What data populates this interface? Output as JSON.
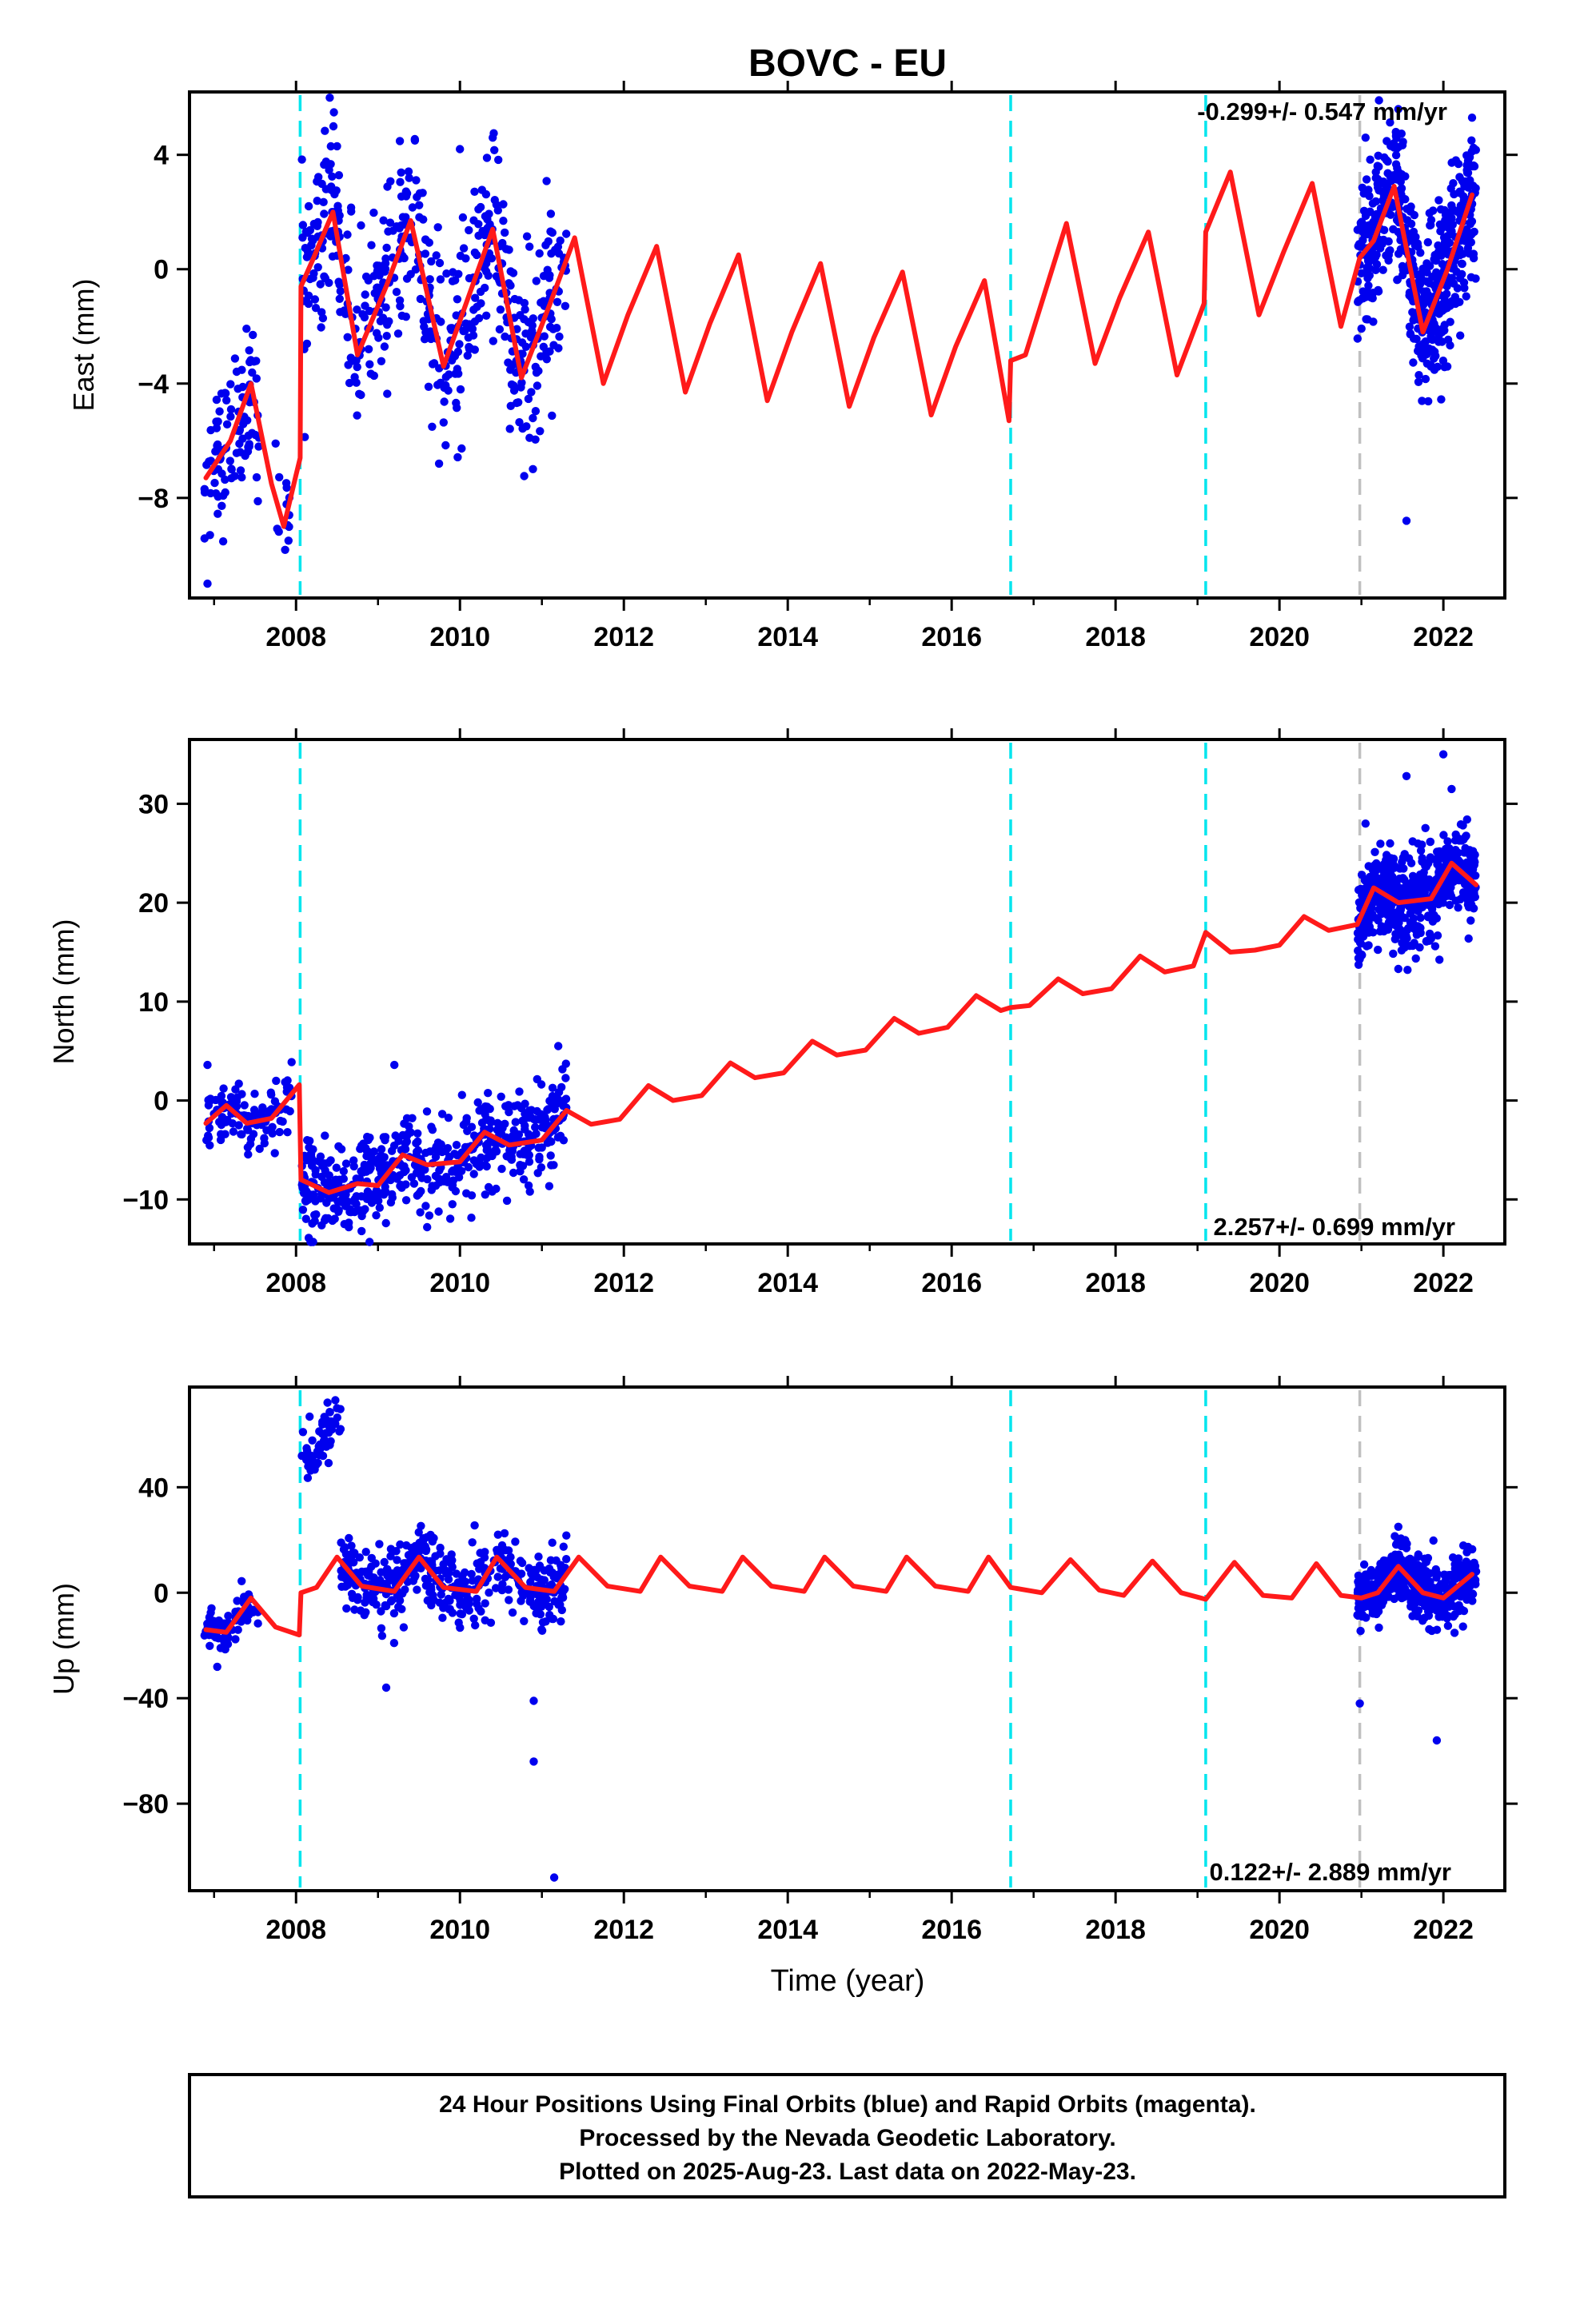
{
  "title": "BOVC - EU",
  "xlabel": "Time (year)",
  "footer": {
    "line1": "24 Hour Positions Using Final Orbits (blue) and Rapid Orbits (magenta).",
    "line2": "Processed by the Nevada Geodetic Laboratory.",
    "line3": "Plotted on 2025-Aug-23. Last data on 2022-May-23."
  },
  "colors": {
    "data_points": "#0000ee",
    "model": "#ff1a1a",
    "equipment_change": "#00e5ee",
    "earthquake_marker": "#c0c0c0",
    "frame": "#000000"
  },
  "chart_data": [
    {
      "type": "scatter",
      "component": "East",
      "ylabel": "East (mm)",
      "rate": "-0.299+/- 0.547 mm/yr",
      "xlim": [
        2006.7,
        2022.75
      ],
      "ylim": [
        -11.5,
        6.2
      ],
      "xticks": [
        2008,
        2010,
        2012,
        2014,
        2016,
        2018,
        2020,
        2022
      ],
      "yticks": [
        -8,
        -4,
        0,
        4
      ],
      "vlines_cyan": [
        2008.05,
        2016.72,
        2019.1
      ],
      "vlines_gray": [
        2020.98
      ],
      "legend": "none",
      "grid": false,
      "model_anchors": [
        [
          2006.9,
          -7.3
        ],
        [
          2007.2,
          -6.0
        ],
        [
          2007.45,
          -4.0
        ],
        [
          2007.7,
          -7.5
        ],
        [
          2007.85,
          -9.0
        ],
        [
          2008.0,
          -7.2
        ],
        [
          2008.05,
          -6.6
        ],
        [
          2008.06,
          -0.6
        ],
        [
          2008.2,
          0.3
        ],
        [
          2008.45,
          2.0
        ],
        [
          2008.75,
          -3.0
        ],
        [
          2009.1,
          -0.6
        ],
        [
          2009.4,
          1.7
        ],
        [
          2009.8,
          -3.4
        ],
        [
          2010.15,
          -0.6
        ],
        [
          2010.4,
          1.4
        ],
        [
          2010.75,
          -3.8
        ],
        [
          2011.1,
          -1.2
        ],
        [
          2011.4,
          1.1
        ],
        [
          2011.75,
          -4.0
        ],
        [
          2012.05,
          -1.6
        ],
        [
          2012.4,
          0.8
        ],
        [
          2012.75,
          -4.3
        ],
        [
          2013.05,
          -1.9
        ],
        [
          2013.4,
          0.5
        ],
        [
          2013.75,
          -4.6
        ],
        [
          2014.05,
          -2.2
        ],
        [
          2014.4,
          0.2
        ],
        [
          2014.75,
          -4.8
        ],
        [
          2015.05,
          -2.4
        ],
        [
          2015.4,
          -0.1
        ],
        [
          2015.75,
          -5.1
        ],
        [
          2016.05,
          -2.7
        ],
        [
          2016.4,
          -0.4
        ],
        [
          2016.7,
          -5.3
        ],
        [
          2016.72,
          -3.2
        ],
        [
          2016.9,
          -3.0
        ],
        [
          2017.4,
          1.6
        ],
        [
          2017.75,
          -3.3
        ],
        [
          2018.05,
          -1.0
        ],
        [
          2018.4,
          1.3
        ],
        [
          2018.75,
          -3.7
        ],
        [
          2019.08,
          -1.2
        ],
        [
          2019.1,
          1.3
        ],
        [
          2019.4,
          3.4
        ],
        [
          2019.75,
          -1.6
        ],
        [
          2020.05,
          0.6
        ],
        [
          2020.4,
          3.0
        ],
        [
          2020.75,
          -2.0
        ],
        [
          2020.98,
          0.4
        ],
        [
          2021.15,
          1.0
        ],
        [
          2021.4,
          2.9
        ],
        [
          2021.75,
          -2.2
        ],
        [
          2022.05,
          0.0
        ],
        [
          2022.35,
          2.6
        ]
      ],
      "data_segments": [
        {
          "x0": 2006.88,
          "x1": 2007.55,
          "n": 95,
          "sigma": 1.3
        },
        {
          "x0": 2007.75,
          "x1": 2007.92,
          "n": 14,
          "sigma": 0.9
        },
        {
          "x0": 2008.07,
          "x1": 2011.3,
          "n": 520,
          "sigma": 1.6
        },
        {
          "x0": 2020.95,
          "x1": 2022.4,
          "n": 560,
          "sigma": 1.4
        }
      ],
      "outliers": [
        [
          2006.92,
          -11.0
        ],
        [
          2006.95,
          -9.3
        ],
        [
          2021.55,
          -8.8
        ],
        [
          2021.45,
          5.6
        ],
        [
          2021.42,
          4.8
        ],
        [
          2021.05,
          4.6
        ],
        [
          2022.35,
          5.3
        ],
        [
          2010.4,
          4.6
        ],
        [
          2009.45,
          4.5
        ],
        [
          2010.0,
          4.2
        ],
        [
          2008.5,
          4.3
        ],
        [
          2010.85,
          -5.9
        ]
      ]
    },
    {
      "type": "scatter",
      "component": "North",
      "ylabel": "North (mm)",
      "rate": "2.257+/- 0.699 mm/yr",
      "xlim": [
        2006.7,
        2022.75
      ],
      "ylim": [
        -14.5,
        36.5
      ],
      "xticks": [
        2008,
        2010,
        2012,
        2014,
        2016,
        2018,
        2020,
        2022
      ],
      "yticks": [
        -10,
        0,
        10,
        20,
        30
      ],
      "vlines_cyan": [
        2008.05,
        2016.72,
        2019.1
      ],
      "vlines_gray": [
        2020.98
      ],
      "legend": "none",
      "grid": false,
      "model_anchors": [
        [
          2006.9,
          -2.3
        ],
        [
          2007.15,
          -0.5
        ],
        [
          2007.4,
          -2.3
        ],
        [
          2007.7,
          -1.8
        ],
        [
          2008.04,
          1.6
        ],
        [
          2008.06,
          -8.0
        ],
        [
          2008.4,
          -9.3
        ],
        [
          2008.75,
          -8.4
        ],
        [
          2009.0,
          -8.6
        ],
        [
          2009.3,
          -5.5
        ],
        [
          2009.6,
          -6.5
        ],
        [
          2010.0,
          -6.2
        ],
        [
          2010.3,
          -3.2
        ],
        [
          2010.6,
          -4.5
        ],
        [
          2011.0,
          -4.0
        ],
        [
          2011.3,
          -1.0
        ],
        [
          2011.6,
          -2.4
        ],
        [
          2011.95,
          -1.9
        ],
        [
          2012.3,
          1.5
        ],
        [
          2012.6,
          0.0
        ],
        [
          2012.95,
          0.5
        ],
        [
          2013.3,
          3.8
        ],
        [
          2013.6,
          2.3
        ],
        [
          2013.95,
          2.8
        ],
        [
          2014.3,
          6.0
        ],
        [
          2014.6,
          4.6
        ],
        [
          2014.95,
          5.1
        ],
        [
          2015.3,
          8.3
        ],
        [
          2015.6,
          6.8
        ],
        [
          2015.95,
          7.4
        ],
        [
          2016.3,
          10.6
        ],
        [
          2016.6,
          9.1
        ],
        [
          2016.72,
          9.4
        ],
        [
          2016.95,
          9.6
        ],
        [
          2017.3,
          12.3
        ],
        [
          2017.6,
          10.8
        ],
        [
          2017.95,
          11.3
        ],
        [
          2018.3,
          14.6
        ],
        [
          2018.6,
          13.0
        ],
        [
          2018.95,
          13.6
        ],
        [
          2019.1,
          17.0
        ],
        [
          2019.4,
          15.0
        ],
        [
          2019.7,
          15.2
        ],
        [
          2020.0,
          15.7
        ],
        [
          2020.3,
          18.6
        ],
        [
          2020.6,
          17.2
        ],
        [
          2020.95,
          17.8
        ],
        [
          2021.15,
          21.5
        ],
        [
          2021.45,
          20.0
        ],
        [
          2021.85,
          20.4
        ],
        [
          2022.1,
          24.0
        ],
        [
          2022.4,
          21.8
        ]
      ],
      "data_segments": [
        {
          "x0": 2006.88,
          "x1": 2007.95,
          "n": 110,
          "sigma": 1.5
        },
        {
          "x0": 2008.07,
          "x1": 2011.3,
          "n": 520,
          "sigma": 2.4
        },
        {
          "x0": 2020.95,
          "x1": 2022.4,
          "n": 560,
          "sigma": 2.3
        }
      ],
      "outliers": [
        [
          2022.0,
          35.0
        ],
        [
          2021.55,
          32.8
        ],
        [
          2022.1,
          31.5
        ],
        [
          2021.05,
          28.0
        ],
        [
          2021.45,
          13.3
        ],
        [
          2009.2,
          3.6
        ],
        [
          2011.2,
          5.5
        ],
        [
          2006.92,
          3.6
        ],
        [
          2008.8,
          -13.2
        ],
        [
          2009.6,
          -12.8
        ]
      ]
    },
    {
      "type": "scatter",
      "component": "Up",
      "ylabel": "Up (mm)",
      "rate": "0.122+/- 2.889 mm/yr",
      "xlim": [
        2006.7,
        2022.75
      ],
      "ylim": [
        -113,
        78
      ],
      "xticks": [
        2008,
        2010,
        2012,
        2014,
        2016,
        2018,
        2020,
        2022
      ],
      "yticks": [
        -80,
        -40,
        0,
        40
      ],
      "vlines_cyan": [
        2008.05,
        2016.72,
        2019.1
      ],
      "vlines_gray": [
        2020.98
      ],
      "legend": "none",
      "grid": false,
      "model_anchors": [
        [
          2006.9,
          -14.0
        ],
        [
          2007.15,
          -15.0
        ],
        [
          2007.45,
          -2.0
        ],
        [
          2007.75,
          -13.0
        ],
        [
          2008.04,
          -16.0
        ],
        [
          2008.06,
          0.0
        ],
        [
          2008.25,
          2.0
        ],
        [
          2008.5,
          13.5
        ],
        [
          2008.8,
          2.5
        ],
        [
          2009.2,
          0.5
        ],
        [
          2009.5,
          13.5
        ],
        [
          2009.8,
          2.0
        ],
        [
          2010.2,
          0.5
        ],
        [
          2010.45,
          13.5
        ],
        [
          2010.8,
          2.0
        ],
        [
          2011.15,
          0.5
        ],
        [
          2011.45,
          13.5
        ],
        [
          2011.8,
          2.5
        ],
        [
          2012.2,
          0.5
        ],
        [
          2012.45,
          13.5
        ],
        [
          2012.8,
          2.5
        ],
        [
          2013.2,
          0.5
        ],
        [
          2013.45,
          13.5
        ],
        [
          2013.8,
          2.5
        ],
        [
          2014.2,
          0.5
        ],
        [
          2014.45,
          13.5
        ],
        [
          2014.8,
          2.5
        ],
        [
          2015.2,
          0.5
        ],
        [
          2015.45,
          13.5
        ],
        [
          2015.8,
          2.5
        ],
        [
          2016.2,
          0.5
        ],
        [
          2016.45,
          13.5
        ],
        [
          2016.72,
          2.0
        ],
        [
          2017.1,
          0.0
        ],
        [
          2017.45,
          12.5
        ],
        [
          2017.8,
          1.0
        ],
        [
          2018.1,
          -1.0
        ],
        [
          2018.45,
          12.0
        ],
        [
          2018.8,
          0.0
        ],
        [
          2019.1,
          -2.5
        ],
        [
          2019.45,
          11.5
        ],
        [
          2019.8,
          -1.0
        ],
        [
          2020.15,
          -2.0
        ],
        [
          2020.45,
          11.0
        ],
        [
          2020.75,
          -1.0
        ],
        [
          2021.0,
          -2.0
        ],
        [
          2021.2,
          0.0
        ],
        [
          2021.45,
          10.0
        ],
        [
          2021.75,
          0.0
        ],
        [
          2022.0,
          -2.0
        ],
        [
          2022.35,
          7.0
        ]
      ],
      "data_segments": [
        {
          "x0": 2006.88,
          "x1": 2007.55,
          "n": 80,
          "sigma": 4.0
        },
        {
          "x0": 2008.07,
          "x1": 2008.55,
          "n": 60,
          "sigma": 5.0,
          "offset": 52
        },
        {
          "x0": 2008.55,
          "x1": 2011.3,
          "n": 430,
          "sigma": 7.0
        },
        {
          "x0": 2020.95,
          "x1": 2022.4,
          "n": 560,
          "sigma": 5.5
        }
      ],
      "outliers": [
        [
          2011.15,
          -108.0
        ],
        [
          2010.9,
          -64.0
        ],
        [
          2010.9,
          -41.0
        ],
        [
          2009.1,
          -36.0
        ],
        [
          2021.92,
          -56.0
        ],
        [
          2020.98,
          -42.0
        ],
        [
          2021.45,
          25.0
        ],
        [
          2008.55,
          19.0
        ],
        [
          2008.48,
          73.0
        ],
        [
          2008.5,
          70.0
        ]
      ]
    }
  ]
}
